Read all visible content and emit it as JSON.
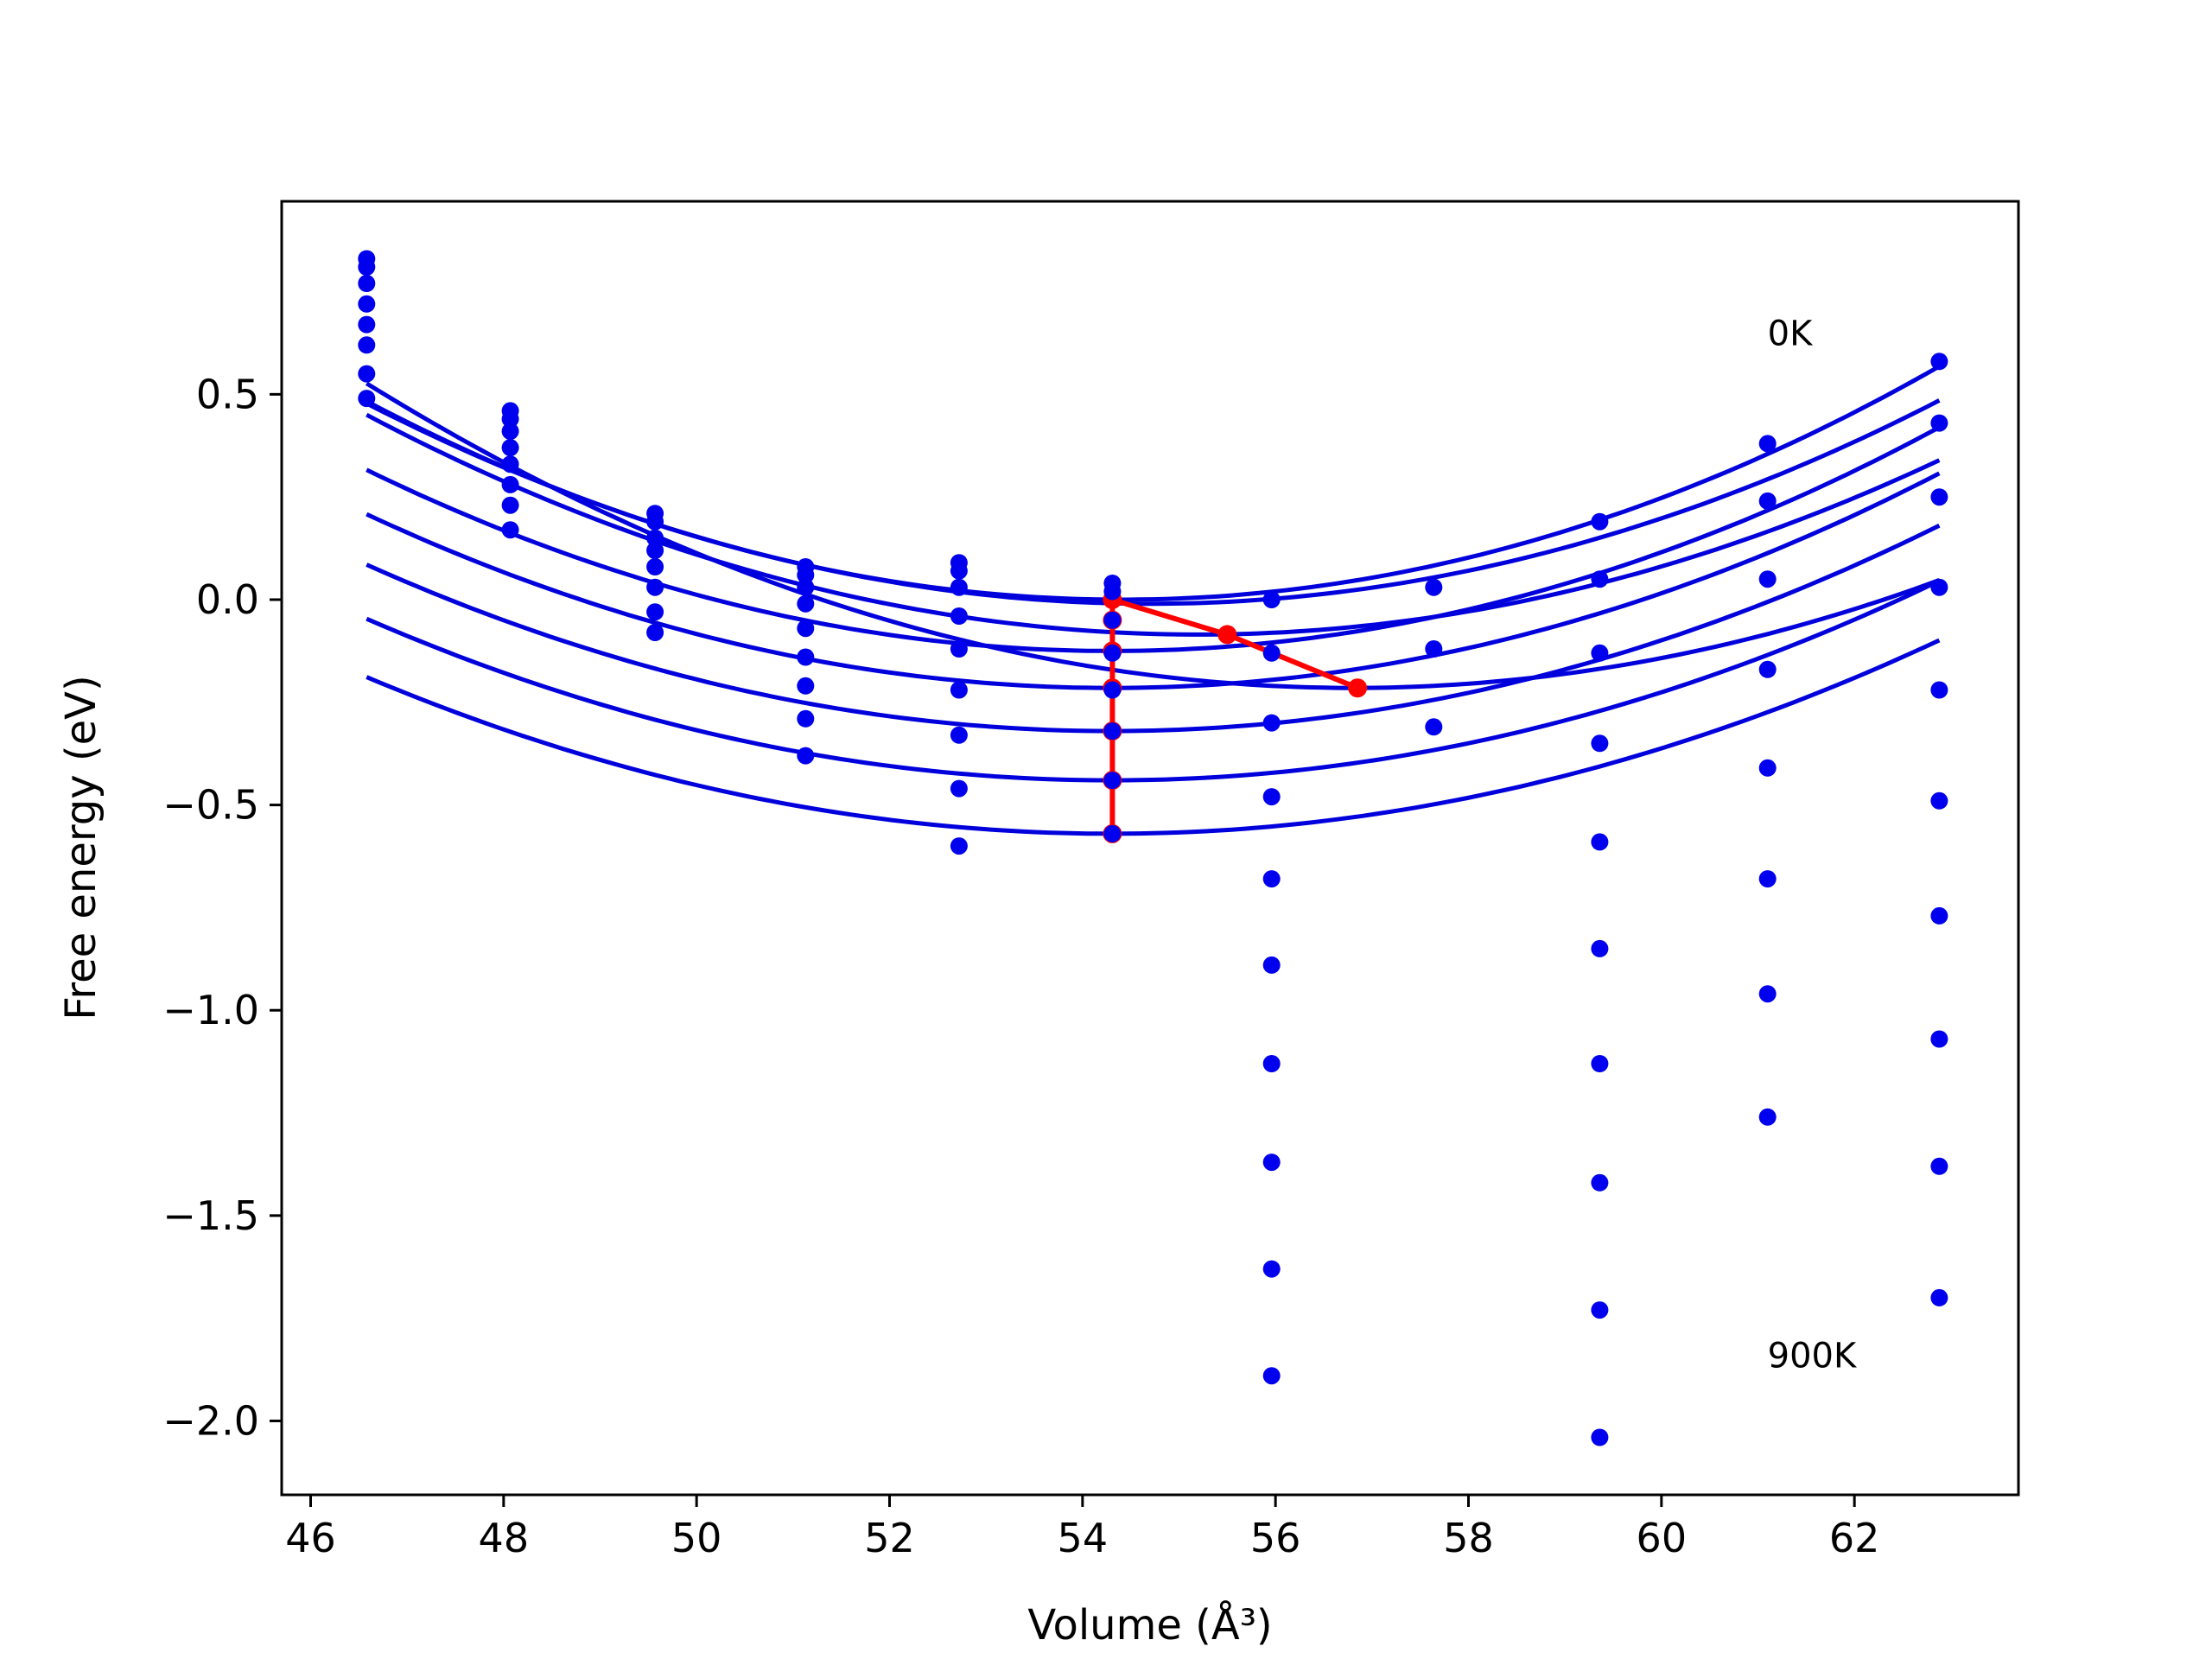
{
  "chart_data": {
    "type": "scatter",
    "xlabel": "Volume (Å³)",
    "ylabel": "Free energy (eV)",
    "xlim": [
      45.7,
      63.7
    ],
    "ylim": [
      -2.18,
      0.97
    ],
    "xticks": [
      46,
      48,
      50,
      52,
      54,
      56,
      58,
      60,
      62
    ],
    "xtick_labels": [
      "46",
      "48",
      "50",
      "52",
      "54",
      "56",
      "58",
      "60",
      "62"
    ],
    "yticks": [
      0.5,
      0.0,
      -0.5,
      -1.0,
      -1.5,
      -2.0
    ],
    "ytick_labels": [
      "0.5",
      "0.0",
      "−0.5",
      "−1.0",
      "−1.5",
      "−2.0"
    ],
    "grid": false,
    "colors": {
      "points": "#0000ee",
      "fits": "#0000dd",
      "minima": "#ff0000",
      "axes": "#000000"
    },
    "annotations": [
      {
        "text": "0K",
        "x": 61.1,
        "y": 0.62
      },
      {
        "text": "900K",
        "x": 61.1,
        "y": -1.87
      }
    ],
    "point_columns": [
      {
        "x": 46.58,
        "y": [
          0.83,
          0.81,
          0.77,
          0.72,
          0.67,
          0.62,
          0.55,
          0.49
        ]
      },
      {
        "x": 48.07,
        "y": [
          0.46,
          0.44,
          0.41,
          0.37,
          0.33,
          0.28,
          0.23,
          0.17
        ]
      },
      {
        "x": 49.57,
        "y": [
          0.21,
          0.19,
          0.15,
          0.12,
          0.08,
          0.03,
          -0.03,
          -0.08
        ]
      },
      {
        "x": 51.13,
        "y": [
          0.08,
          0.06,
          0.03,
          -0.01,
          -0.07,
          -0.14,
          -0.21,
          -0.29,
          -0.38
        ]
      },
      {
        "x": 52.72,
        "y": [
          0.09,
          0.07,
          0.03,
          -0.04,
          -0.12,
          -0.22,
          -0.33,
          -0.46,
          -0.6
        ]
      },
      {
        "x": 54.31,
        "y": [
          0.04,
          0.02,
          -0.05,
          -0.13,
          -0.22,
          -0.32,
          -0.44,
          -0.57
        ]
      },
      {
        "x": 55.96,
        "y": [
          0.0,
          -0.13,
          -0.3,
          -0.48,
          -0.68,
          -0.89,
          -1.13,
          -1.37,
          -1.63,
          -1.89
        ]
      },
      {
        "x": 57.64,
        "y": [
          0.03,
          -0.12,
          -0.31
        ]
      },
      {
        "x": 59.36,
        "y": [
          0.19,
          0.05,
          -0.13,
          -0.35,
          -0.59,
          -0.85,
          -1.13,
          -1.42,
          -1.73,
          -2.04
        ]
      },
      {
        "x": 61.1,
        "y": [
          0.38,
          0.24,
          0.05,
          -0.17,
          -0.41,
          -0.68,
          -0.96,
          -1.26
        ]
      },
      {
        "x": 62.88,
        "y": [
          0.58,
          0.43,
          0.25,
          0.03,
          -0.22,
          -0.49,
          -0.77,
          -1.07,
          -1.38,
          -1.7
        ]
      }
    ],
    "fit_curves": [
      {
        "x_start": 46.58,
        "x_end": 62.88,
        "vmin": 54.4,
        "emin": 0.0,
        "k": 0.0079
      },
      {
        "x_start": 46.58,
        "x_end": 62.88,
        "vmin": 54.7,
        "emin": -0.01,
        "k": 0.0074
      },
      {
        "x_start": 46.58,
        "x_end": 62.88,
        "vmin": 55.2,
        "emin": -0.085,
        "k": 0.0072
      },
      {
        "x_start": 46.58,
        "x_end": 62.88,
        "vmin": 54.3,
        "emin": -0.125,
        "k": 0.0074
      },
      {
        "x_start": 46.58,
        "x_end": 62.88,
        "vmin": 54.3,
        "emin": -0.215,
        "k": 0.0071
      },
      {
        "x_start": 46.58,
        "x_end": 62.88,
        "vmin": 54.3,
        "emin": -0.32,
        "k": 0.0068
      },
      {
        "x_start": 46.58,
        "x_end": 62.88,
        "vmin": 56.8,
        "emin": -0.215,
        "k": 0.0071
      },
      {
        "x_start": 46.58,
        "x_end": 62.88,
        "vmin": 54.3,
        "emin": -0.44,
        "k": 0.0066
      },
      {
        "x_start": 46.58,
        "x_end": 62.88,
        "vmin": 54.3,
        "emin": -0.57,
        "k": 0.0064
      }
    ],
    "minima_path": [
      {
        "x": 56.85,
        "y": -0.215
      },
      {
        "x": 55.5,
        "y": -0.085
      },
      {
        "x": 54.31,
        "y": 0.0
      },
      {
        "x": 54.31,
        "y": -0.05
      },
      {
        "x": 54.31,
        "y": -0.125
      },
      {
        "x": 54.31,
        "y": -0.215
      },
      {
        "x": 54.31,
        "y": -0.32
      },
      {
        "x": 54.31,
        "y": -0.44
      },
      {
        "x": 54.31,
        "y": -0.57
      }
    ]
  }
}
